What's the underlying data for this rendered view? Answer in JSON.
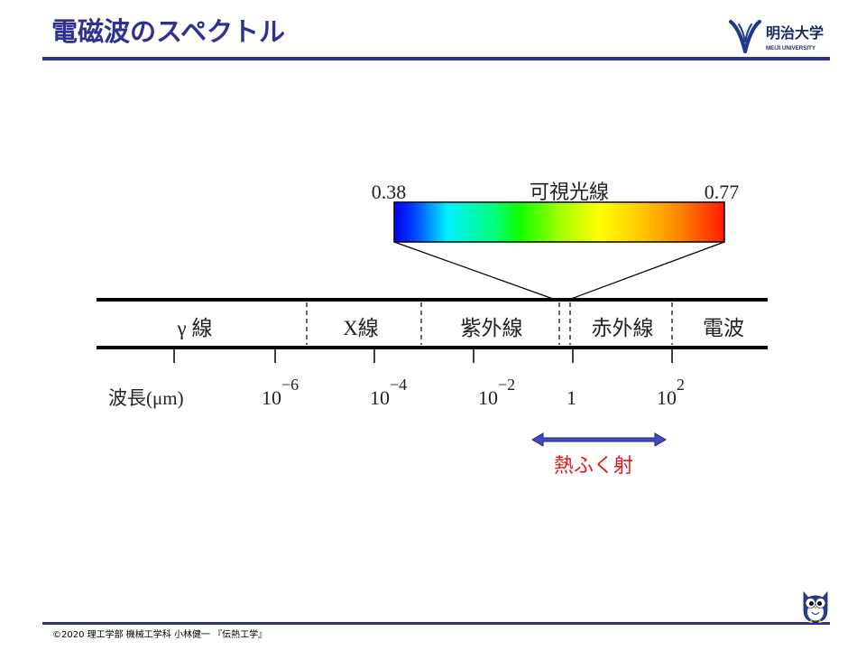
{
  "header": {
    "title": "電磁波のスペクトル",
    "logo": {
      "icon": "meiji-university-mark-icon",
      "name_ja": "明治大学",
      "name_en": "MEIJI UNIVERSITY"
    }
  },
  "diagram": {
    "visible_light": {
      "label": "可視光線",
      "min": "0.38",
      "max": "0.77"
    },
    "bands": [
      {
        "label": "γ 線"
      },
      {
        "label": "X線"
      },
      {
        "label": "紫外線"
      },
      {
        "label": "赤外線"
      },
      {
        "label": "電波"
      }
    ],
    "wavelength_label": "波長(μm)",
    "tick_labels": [
      {
        "base": "10",
        "exp": "−6"
      },
      {
        "base": "10",
        "exp": "−4"
      },
      {
        "base": "10",
        "exp": "−2"
      },
      {
        "base": "1",
        "exp": ""
      },
      {
        "base": "10",
        "exp": "2"
      }
    ],
    "thermal_radiation": {
      "icon": "double-headed-arrow-icon",
      "label": "熱ふく射"
    }
  },
  "footer": {
    "copyright": "©2020 理工学部 機械工学科 小林健一 『伝熱工学』",
    "mascot_icon": "owl-mascot-icon"
  },
  "colors": {
    "title": "#2e3192",
    "rule": "#2e3192",
    "logo": "#1e3a8c",
    "thermal_text": "#e8141c",
    "arrow": "#3f4bbf",
    "spectrum": [
      "#0000f0",
      "#0040ff",
      "#00f0ff",
      "#00ff80",
      "#10ff00",
      "#a0ff00",
      "#ffff00",
      "#ffc800",
      "#ff8000",
      "#ff1a00"
    ]
  }
}
